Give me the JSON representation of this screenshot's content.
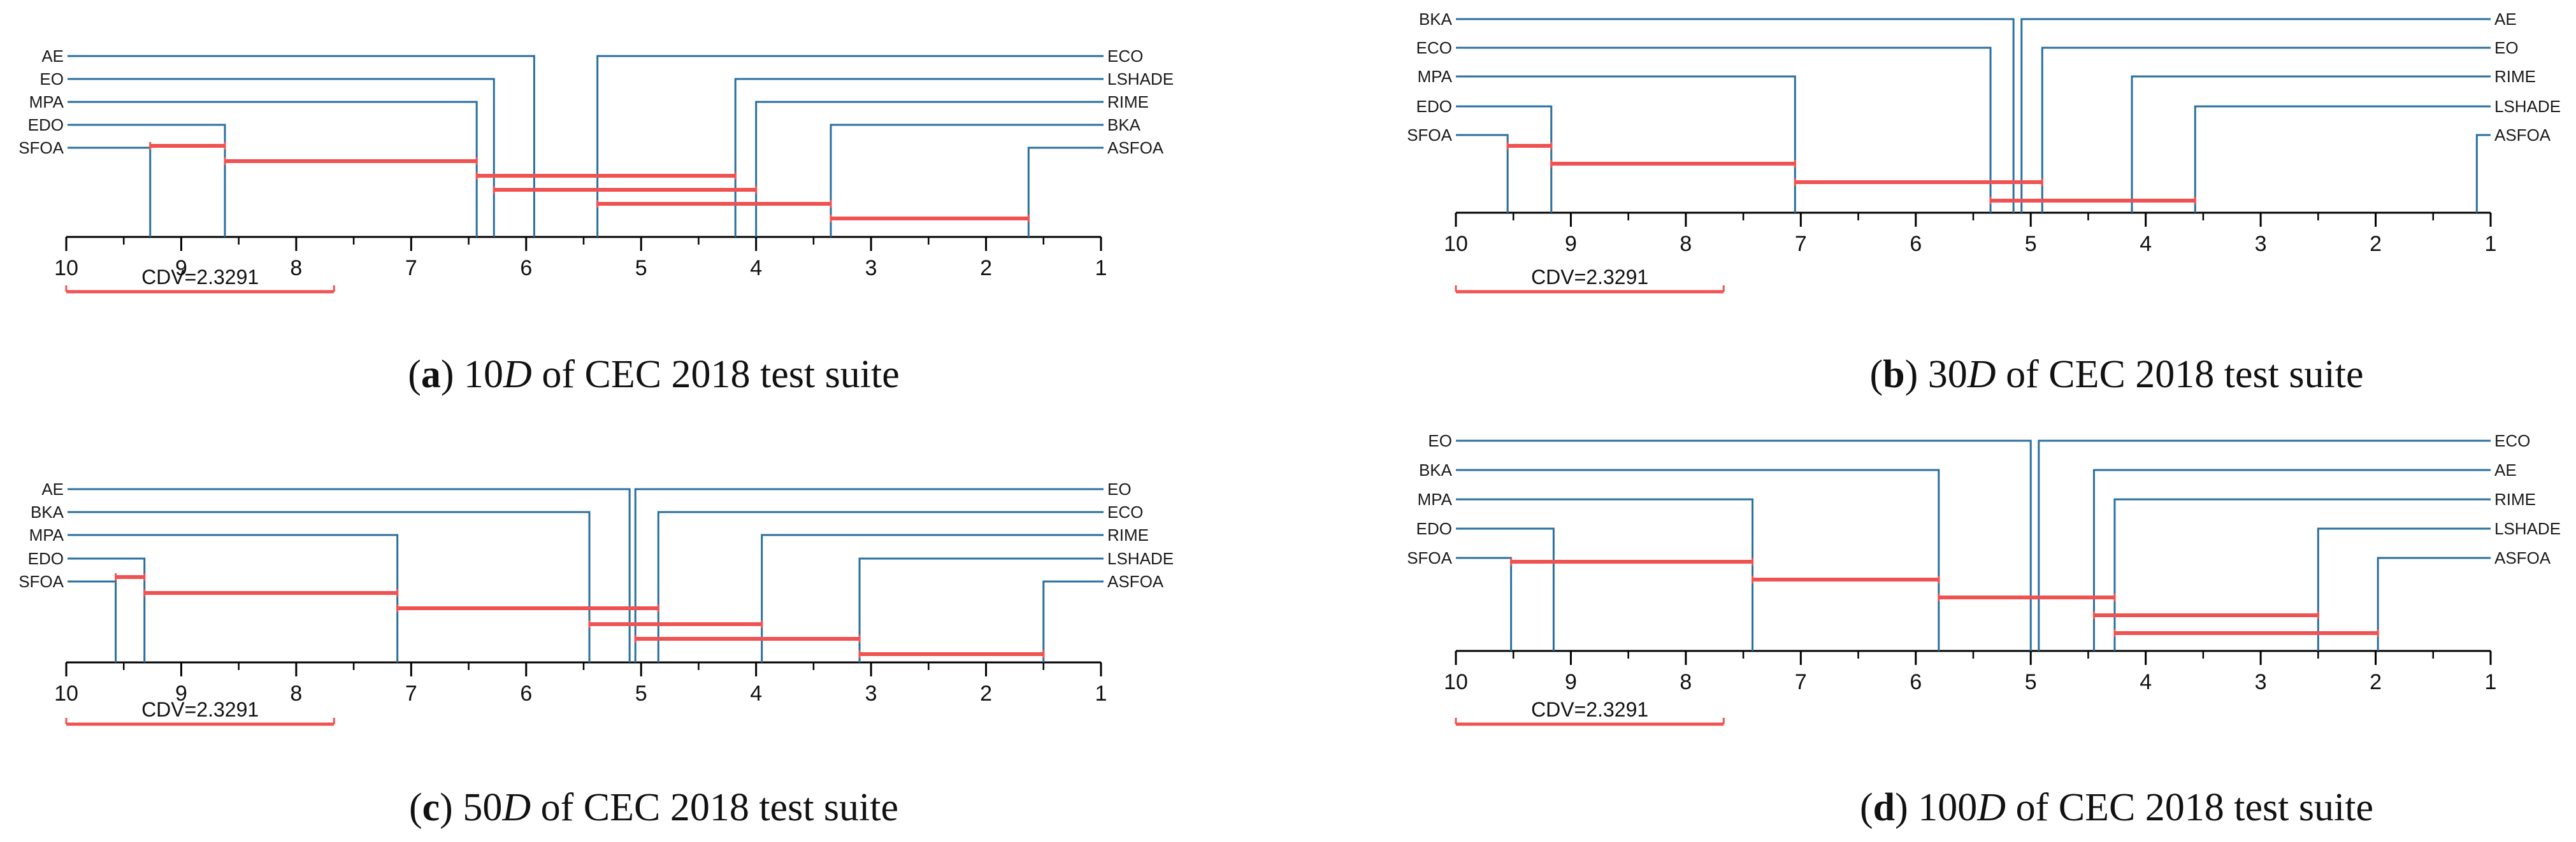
{
  "figure": {
    "colors": {
      "method_line": "#2a6f9e",
      "clique_bar": "#f05252",
      "axis": "#000000",
      "text": "#111111"
    }
  },
  "chart_data": [
    {
      "id": "a",
      "type": "critical-difference",
      "panel_letter": "a",
      "caption_dim": "10",
      "caption_dim_unit": "D",
      "caption_rest": " of CEC 2018 test suite",
      "axis_range": [
        10,
        1
      ],
      "ticks": [
        "10",
        "9",
        "8",
        "7",
        "6",
        "5",
        "4",
        "3",
        "2",
        "1"
      ],
      "cd_label": "CDV=2.3291",
      "cd_value": 2.3291,
      "left_methods": [
        {
          "name": "AE",
          "rank": 5.93
        },
        {
          "name": "EO",
          "rank": 6.28
        },
        {
          "name": "MPA",
          "rank": 6.43
        },
        {
          "name": "EDO",
          "rank": 8.62
        },
        {
          "name": "SFOA",
          "rank": 9.27
        }
      ],
      "right_methods": [
        {
          "name": "ECO",
          "rank": 5.38
        },
        {
          "name": "LSHADE",
          "rank": 4.18
        },
        {
          "name": "RIME",
          "rank": 4.0
        },
        {
          "name": "BKA",
          "rank": 3.35
        },
        {
          "name": "ASFOA",
          "rank": 1.63
        }
      ],
      "cliques": [
        [
          9.27,
          8.62
        ],
        [
          8.62,
          6.43
        ],
        [
          6.43,
          4.18
        ],
        [
          6.28,
          4.0
        ],
        [
          5.38,
          3.35
        ],
        [
          3.35,
          1.63
        ]
      ]
    },
    {
      "id": "b",
      "type": "critical-difference",
      "panel_letter": "b",
      "caption_dim": "30",
      "caption_dim_unit": "D",
      "caption_rest": " of CEC 2018 test suite",
      "axis_range": [
        10,
        1
      ],
      "ticks": [
        "10",
        "9",
        "8",
        "7",
        "6",
        "5",
        "4",
        "3",
        "2",
        "1"
      ],
      "cd_label": "CDV=2.3291",
      "cd_value": 2.3291,
      "left_methods": [
        {
          "name": "BKA",
          "rank": 5.15
        },
        {
          "name": "ECO",
          "rank": 5.35
        },
        {
          "name": "MPA",
          "rank": 7.05
        },
        {
          "name": "EDO",
          "rank": 9.17
        },
        {
          "name": "SFOA",
          "rank": 9.55
        }
      ],
      "right_methods": [
        {
          "name": "AE",
          "rank": 5.08
        },
        {
          "name": "EO",
          "rank": 4.9
        },
        {
          "name": "RIME",
          "rank": 4.12
        },
        {
          "name": "LSHADE",
          "rank": 3.57
        },
        {
          "name": "ASFOA",
          "rank": 1.12
        }
      ],
      "cliques": [
        [
          9.55,
          9.17
        ],
        [
          9.17,
          7.05
        ],
        [
          7.05,
          4.9
        ],
        [
          5.35,
          3.57
        ]
      ]
    },
    {
      "id": "c",
      "type": "critical-difference",
      "panel_letter": "c",
      "caption_dim": "50",
      "caption_dim_unit": "D",
      "caption_rest": " of CEC 2018 test suite",
      "axis_range": [
        10,
        1
      ],
      "ticks": [
        "10",
        "9",
        "8",
        "7",
        "6",
        "5",
        "4",
        "3",
        "2",
        "1"
      ],
      "cd_label": "CDV=2.3291",
      "cd_value": 2.3291,
      "left_methods": [
        {
          "name": "AE",
          "rank": 5.1
        },
        {
          "name": "BKA",
          "rank": 5.45
        },
        {
          "name": "MPA",
          "rank": 7.12
        },
        {
          "name": "EDO",
          "rank": 9.32
        },
        {
          "name": "SFOA",
          "rank": 9.57
        }
      ],
      "right_methods": [
        {
          "name": "EO",
          "rank": 5.05
        },
        {
          "name": "ECO",
          "rank": 4.85
        },
        {
          "name": "RIME",
          "rank": 3.95
        },
        {
          "name": "LSHADE",
          "rank": 3.1
        },
        {
          "name": "ASFOA",
          "rank": 1.5
        }
      ],
      "cliques": [
        [
          9.57,
          9.32
        ],
        [
          9.32,
          7.12
        ],
        [
          7.12,
          4.85
        ],
        [
          5.45,
          3.95
        ],
        [
          5.05,
          3.1
        ],
        [
          3.1,
          1.5
        ]
      ]
    },
    {
      "id": "d",
      "type": "critical-difference",
      "panel_letter": "d",
      "caption_dim": "100",
      "caption_dim_unit": "D",
      "caption_rest": " of CEC 2018 test suite",
      "axis_range": [
        10,
        1
      ],
      "ticks": [
        "10",
        "9",
        "8",
        "7",
        "6",
        "5",
        "4",
        "3",
        "2",
        "1"
      ],
      "cd_label": "CDV=2.3291",
      "cd_value": 2.3291,
      "left_methods": [
        {
          "name": "EO",
          "rank": 5.0
        },
        {
          "name": "BKA",
          "rank": 5.8
        },
        {
          "name": "MPA",
          "rank": 7.42
        },
        {
          "name": "EDO",
          "rank": 9.15
        },
        {
          "name": "SFOA",
          "rank": 9.52
        }
      ],
      "right_methods": [
        {
          "name": "ECO",
          "rank": 4.93
        },
        {
          "name": "AE",
          "rank": 4.45
        },
        {
          "name": "RIME",
          "rank": 4.27
        },
        {
          "name": "LSHADE",
          "rank": 2.5
        },
        {
          "name": "ASFOA",
          "rank": 1.98
        }
      ],
      "cliques": [
        [
          9.52,
          7.42
        ],
        [
          7.42,
          5.8
        ],
        [
          5.8,
          4.27
        ],
        [
          4.45,
          2.5
        ],
        [
          4.27,
          1.98
        ]
      ]
    }
  ]
}
